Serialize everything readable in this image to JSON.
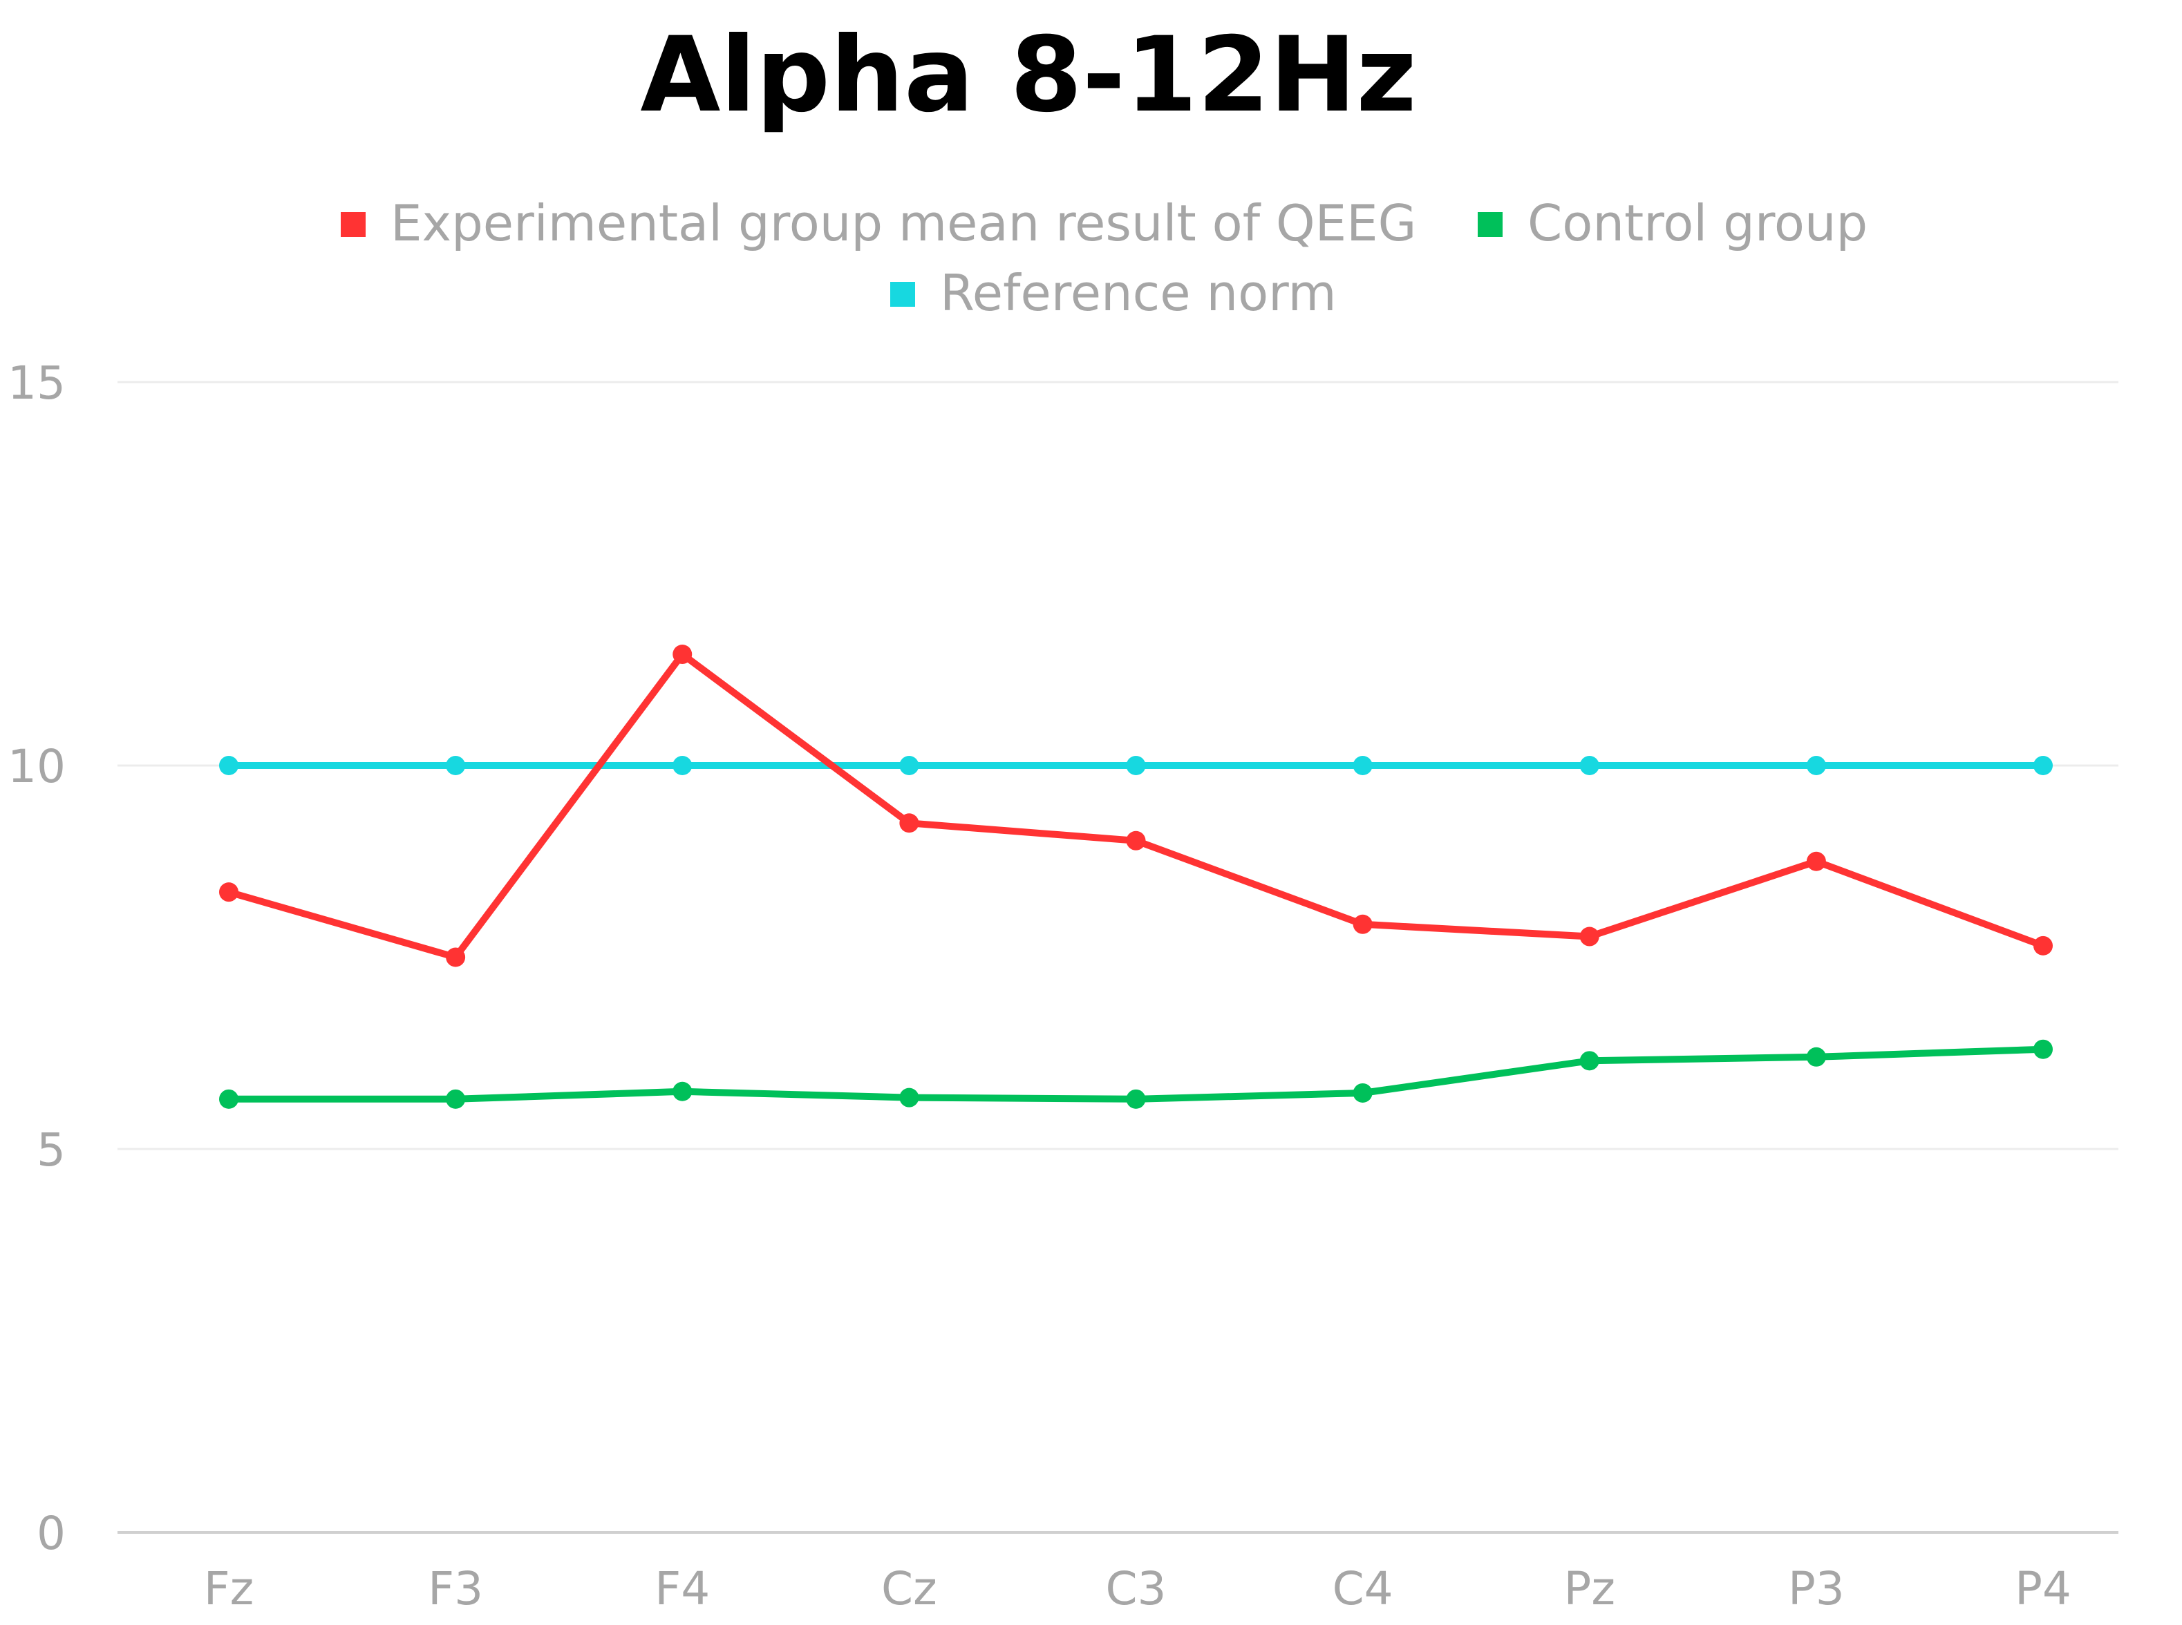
{
  "chart_data": {
    "type": "line",
    "title": "Alpha 8-12Hz",
    "xlabel": "",
    "ylabel": "",
    "categories": [
      "Fz",
      "F3",
      "F4",
      "Cz",
      "C3",
      "C4",
      "Pz",
      "P3",
      "P4"
    ],
    "ylim": [
      0,
      15
    ],
    "yticks": [
      "0",
      "5",
      "10",
      "15"
    ],
    "grid": true,
    "legend_position": "top-center",
    "series": [
      {
        "name": "Experimental group mean result of QEEG",
        "color": "#ff3333",
        "values": [
          8.35,
          7.5,
          11.45,
          9.25,
          9.02,
          7.93,
          7.77,
          8.75,
          7.65
        ]
      },
      {
        "name": "Control group",
        "color": "#00c05a",
        "values": [
          5.65,
          5.65,
          5.75,
          5.67,
          5.65,
          5.73,
          6.15,
          6.2,
          6.3
        ]
      },
      {
        "name": "Reference norm",
        "color": "#17d8e0",
        "values": [
          10,
          10,
          10,
          10,
          10,
          10,
          10,
          10,
          10
        ]
      }
    ]
  }
}
